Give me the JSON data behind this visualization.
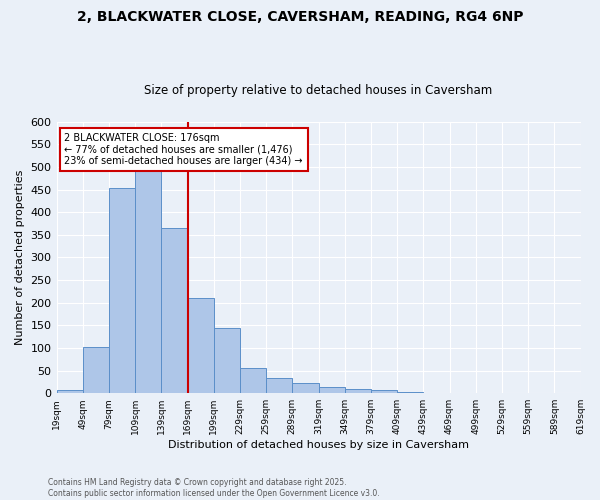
{
  "title_line1": "2, BLACKWATER CLOSE, CAVERSHAM, READING, RG4 6NP",
  "title_line2": "Size of property relative to detached houses in Caversham",
  "xlabel": "Distribution of detached houses by size in Caversham",
  "ylabel": "Number of detached properties",
  "bar_values": [
    7,
    103,
    454,
    496,
    366,
    210,
    145,
    56,
    34,
    23,
    13,
    10,
    6,
    2,
    1,
    0,
    0,
    0,
    0,
    1
  ],
  "bin_labels": [
    "19sqm",
    "49sqm",
    "79sqm",
    "109sqm",
    "139sqm",
    "169sqm",
    "199sqm",
    "229sqm",
    "259sqm",
    "289sqm",
    "319sqm",
    "349sqm",
    "379sqm",
    "409sqm",
    "439sqm",
    "469sqm",
    "499sqm",
    "529sqm",
    "559sqm",
    "589sqm",
    "619sqm"
  ],
  "bar_color": "#aec6e8",
  "bar_edge_color": "#5b8fc9",
  "reference_line_x": 5,
  "reference_line_color": "#cc0000",
  "annotation_text": "2 BLACKWATER CLOSE: 176sqm\n← 77% of detached houses are smaller (1,476)\n23% of semi-detached houses are larger (434) →",
  "annotation_box_color": "#cc0000",
  "ylim": [
    0,
    600
  ],
  "yticks": [
    0,
    50,
    100,
    150,
    200,
    250,
    300,
    350,
    400,
    450,
    500,
    550,
    600
  ],
  "bg_color": "#eaf0f8",
  "plot_bg_color": "#eaf0f8",
  "footer_text": "Contains HM Land Registry data © Crown copyright and database right 2025.\nContains public sector information licensed under the Open Government Licence v3.0.",
  "grid_color": "#ffffff"
}
